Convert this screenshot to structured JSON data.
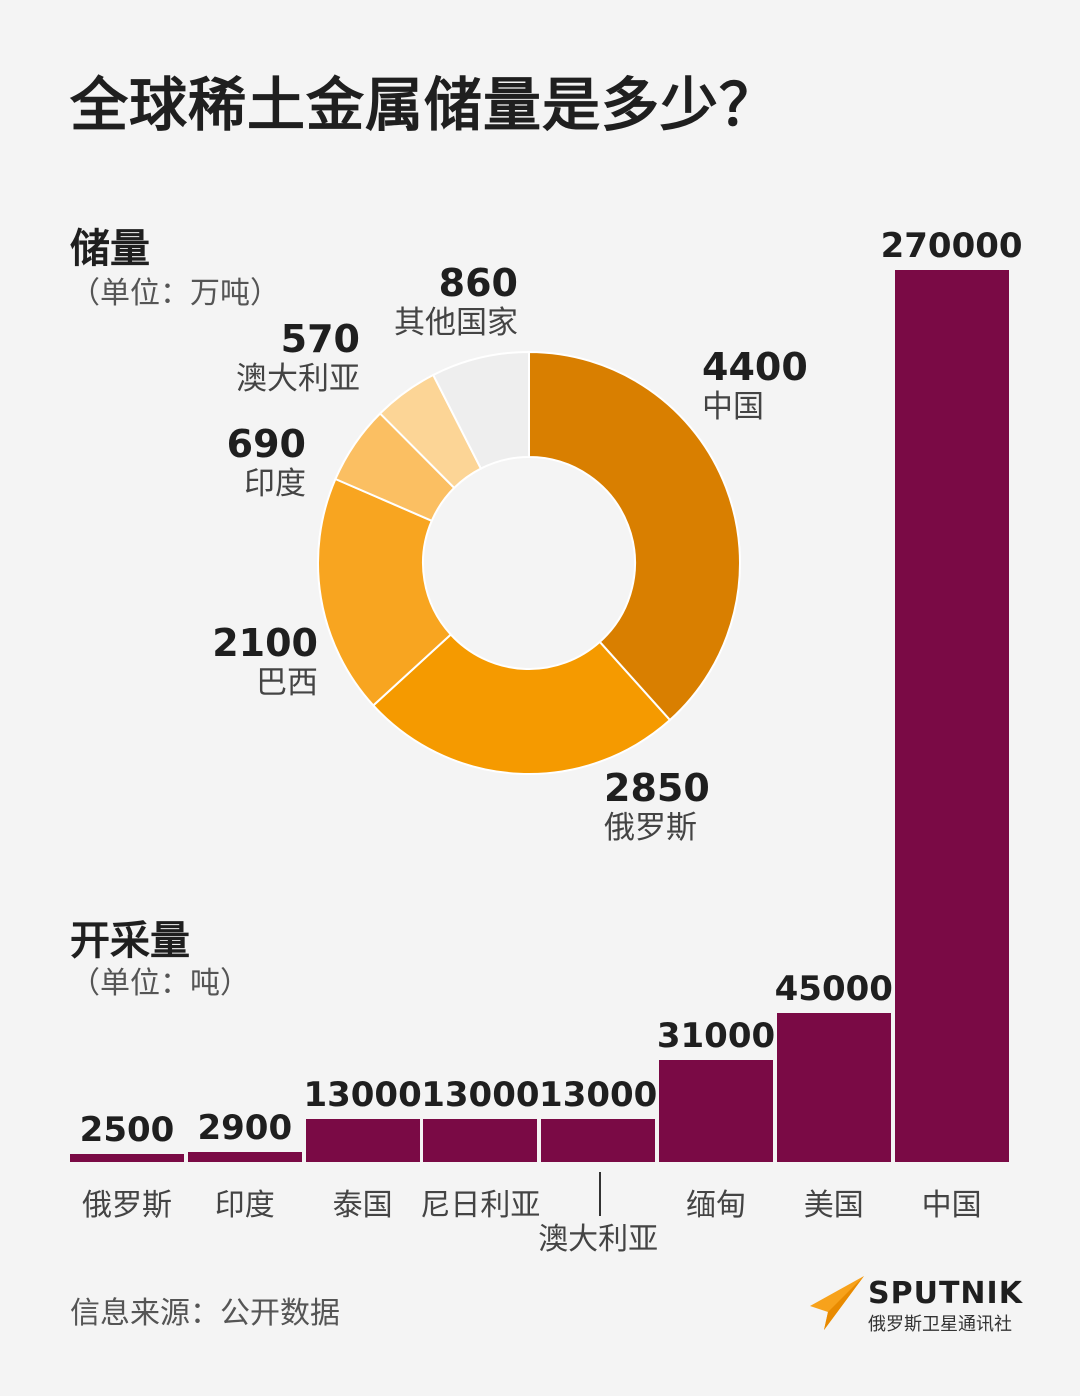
{
  "title": "全球稀土金属储量是多少？",
  "reserves": {
    "heading": "储量",
    "unit": "（单位：万吨）"
  },
  "mining": {
    "heading": "开采量",
    "unit": "（单位：吨）"
  },
  "source": "信息来源：公开数据",
  "logo": {
    "name": "SPUTNIK",
    "sub": "俄罗斯卫星通讯社"
  },
  "colors": {
    "bar": "#7a0a45",
    "accent_orange": "#f7a21b"
  },
  "chart_data": [
    {
      "type": "pie",
      "title": "储量",
      "unit": "（单位：万吨）",
      "donut": true,
      "slices": [
        {
          "label": "中国",
          "value": 4400,
          "color": "#d97f00"
        },
        {
          "label": "俄罗斯",
          "value": 2850,
          "color": "#f59a00"
        },
        {
          "label": "巴西",
          "value": 2100,
          "color": "#f8a520"
        },
        {
          "label": "印度",
          "value": 690,
          "color": "#fbbf62"
        },
        {
          "label": "澳大利亚",
          "value": 570,
          "color": "#fcd596"
        },
        {
          "label": "其他国家",
          "value": 860,
          "color": "#eeeeee"
        }
      ]
    },
    {
      "type": "bar",
      "title": "开采量",
      "unit": "（单位：吨）",
      "categories": [
        "俄罗斯",
        "印度",
        "泰国",
        "尼日利亚",
        "澳大利亚",
        "缅甸",
        "美国",
        "中国"
      ],
      "values": [
        2500,
        2900,
        13000,
        13000,
        13000,
        31000,
        45000,
        270000
      ],
      "value_labels": [
        "2500",
        "2900",
        "13000",
        "13000",
        "13000",
        "31000",
        "45000",
        "270000"
      ]
    }
  ]
}
